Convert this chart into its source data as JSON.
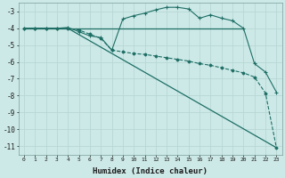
{
  "xlabel": "Humidex (Indice chaleur)",
  "bg_color": "#cce9e7",
  "grid_color": "#b8d8d5",
  "line_color": "#1e6e65",
  "xlim": [
    -0.5,
    23.5
  ],
  "ylim": [
    -11.5,
    -2.5
  ],
  "yticks": [
    -3,
    -4,
    -5,
    -6,
    -7,
    -8,
    -9,
    -10,
    -11
  ],
  "xticks": [
    0,
    1,
    2,
    3,
    4,
    5,
    6,
    7,
    8,
    9,
    10,
    11,
    12,
    13,
    14,
    15,
    16,
    17,
    18,
    19,
    20,
    21,
    22,
    23
  ],
  "line1_x": [
    0,
    1,
    2,
    3,
    4,
    5,
    6,
    7,
    8,
    9,
    10,
    11,
    12,
    13,
    14,
    15,
    16,
    17,
    18,
    19,
    20
  ],
  "line1_y": [
    -4.0,
    -4.0,
    -4.0,
    -4.0,
    -4.0,
    -4.0,
    -4.0,
    -4.0,
    -4.0,
    -4.0,
    -4.0,
    -4.0,
    -4.0,
    -4.0,
    -4.0,
    -4.0,
    -4.0,
    -4.0,
    -4.0,
    -4.0,
    -4.0
  ],
  "line2_x": [
    0,
    4,
    23
  ],
  "line2_y": [
    -4.0,
    -4.0,
    -11.1
  ],
  "line3_x": [
    0,
    1,
    2,
    3,
    4,
    5,
    6,
    7,
    8,
    9,
    10,
    11,
    12,
    13,
    14,
    15,
    16,
    17,
    18,
    19,
    20,
    21,
    22,
    23
  ],
  "line3_y": [
    -4.0,
    -4.0,
    -4.0,
    -4.0,
    -4.0,
    -4.1,
    -4.35,
    -4.6,
    -5.3,
    -5.4,
    -5.5,
    -5.55,
    -5.65,
    -5.75,
    -5.85,
    -5.95,
    -6.1,
    -6.2,
    -6.35,
    -6.5,
    -6.65,
    -6.9,
    -7.85,
    -11.1
  ],
  "line4_x": [
    0,
    1,
    2,
    3,
    4,
    5,
    6,
    7,
    8,
    9,
    10,
    11,
    12,
    13,
    14,
    15,
    16,
    17,
    18,
    19,
    20,
    21,
    22,
    23
  ],
  "line4_y": [
    -4.0,
    -4.0,
    -4.0,
    -4.0,
    -3.95,
    -4.2,
    -4.45,
    -4.55,
    -5.3,
    -3.45,
    -3.25,
    -3.1,
    -2.9,
    -2.75,
    -2.75,
    -2.85,
    -3.4,
    -3.2,
    -3.4,
    -3.55,
    -4.0,
    -6.1,
    -6.6,
    -7.8
  ]
}
